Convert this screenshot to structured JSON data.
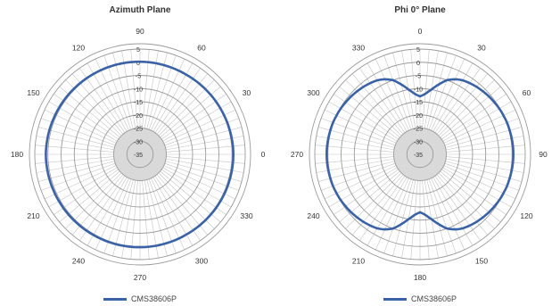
{
  "colors": {
    "series": "#3a62a6",
    "grid": "#9a9a9a",
    "spoke": "#c4c4c4",
    "inner_disk": "#d9d9d9",
    "text": "#333333"
  },
  "chart_data": [
    {
      "type": "polar-line",
      "title": "Azimuth Plane",
      "radial_ticks": [
        "5",
        "0",
        "-5",
        "-10",
        "-15",
        "-20",
        "-25",
        "-30",
        "-35"
      ],
      "r_range": [
        -35,
        5
      ],
      "r_ticks": [
        5,
        0,
        -5,
        -10,
        -15,
        -20,
        -25,
        -30,
        -35
      ],
      "angle_labels": [
        {
          "angle": 0,
          "label": "0"
        },
        {
          "angle": 30,
          "label": "30"
        },
        {
          "angle": 60,
          "label": "60"
        },
        {
          "angle": 90,
          "label": "90"
        },
        {
          "angle": 120,
          "label": "120"
        },
        {
          "angle": 150,
          "label": "150"
        },
        {
          "angle": 180,
          "label": "180"
        },
        {
          "angle": 210,
          "label": "210"
        },
        {
          "angle": 240,
          "label": "240"
        },
        {
          "angle": 270,
          "label": "270"
        },
        {
          "angle": 300,
          "label": "300"
        },
        {
          "angle": 330,
          "label": "330"
        }
      ],
      "zero_at": "right",
      "direction": "counterclockwise",
      "legend": "bottom-center",
      "series": [
        {
          "name": "CMS38606P",
          "points": [
            [
              0,
              0.5
            ],
            [
              30,
              0.2
            ],
            [
              60,
              0.0
            ],
            [
              90,
              0.2
            ],
            [
              120,
              0.3
            ],
            [
              150,
              0.5
            ],
            [
              180,
              0.8
            ],
            [
              210,
              0.6
            ],
            [
              240,
              0.4
            ],
            [
              270,
              0.3
            ],
            [
              300,
              0.2
            ],
            [
              330,
              0.4
            ]
          ]
        }
      ]
    },
    {
      "type": "polar-line",
      "title": "Phi 0° Plane",
      "radial_ticks": [
        "5",
        "0",
        "-5",
        "-10",
        "-15",
        "-20",
        "-25",
        "-30",
        "-35"
      ],
      "r_range": [
        -35,
        5
      ],
      "r_ticks": [
        5,
        0,
        -5,
        -10,
        -15,
        -20,
        -25,
        -30,
        -35
      ],
      "angle_labels": [
        {
          "angle": 0,
          "label": "0"
        },
        {
          "angle": 30,
          "label": "30"
        },
        {
          "angle": 60,
          "label": "60"
        },
        {
          "angle": 90,
          "label": "90"
        },
        {
          "angle": 120,
          "label": "120"
        },
        {
          "angle": 150,
          "label": "150"
        },
        {
          "angle": 180,
          "label": "180"
        },
        {
          "angle": 210,
          "label": "210"
        },
        {
          "angle": 240,
          "label": "240"
        },
        {
          "angle": 270,
          "label": "270"
        },
        {
          "angle": 300,
          "label": "300"
        },
        {
          "angle": 330,
          "label": "330"
        }
      ],
      "zero_at": "top",
      "direction": "clockwise",
      "legend": "bottom-center",
      "series": [
        {
          "name": "CMS38606P",
          "points": [
            [
              0,
              -13
            ],
            [
              5,
              -12
            ],
            [
              10,
              -10
            ],
            [
              15,
              -7.5
            ],
            [
              20,
              -5
            ],
            [
              25,
              -3.5
            ],
            [
              30,
              -2.5
            ],
            [
              40,
              -1.5
            ],
            [
              50,
              -0.8
            ],
            [
              60,
              -0.2
            ],
            [
              70,
              0.2
            ],
            [
              80,
              0.4
            ],
            [
              90,
              0.5
            ],
            [
              100,
              0.4
            ],
            [
              110,
              0.2
            ],
            [
              120,
              -0.2
            ],
            [
              130,
              -0.8
            ],
            [
              140,
              -1.5
            ],
            [
              150,
              -2.5
            ],
            [
              155,
              -3.5
            ],
            [
              160,
              -5
            ],
            [
              165,
              -7.5
            ],
            [
              170,
              -10
            ],
            [
              175,
              -12
            ],
            [
              180,
              -13
            ],
            [
              185,
              -12
            ],
            [
              190,
              -10
            ],
            [
              195,
              -7.5
            ],
            [
              200,
              -5
            ],
            [
              205,
              -3.5
            ],
            [
              210,
              -2.5
            ],
            [
              220,
              -1.5
            ],
            [
              230,
              -0.8
            ],
            [
              240,
              -0.2
            ],
            [
              250,
              0.2
            ],
            [
              260,
              0.4
            ],
            [
              270,
              0.5
            ],
            [
              280,
              0.4
            ],
            [
              290,
              0.2
            ],
            [
              300,
              -0.2
            ],
            [
              310,
              -0.8
            ],
            [
              320,
              -1.5
            ],
            [
              330,
              -2.5
            ],
            [
              335,
              -3.5
            ],
            [
              340,
              -5
            ],
            [
              345,
              -7.5
            ],
            [
              350,
              -10
            ],
            [
              355,
              -12
            ]
          ]
        }
      ]
    }
  ]
}
